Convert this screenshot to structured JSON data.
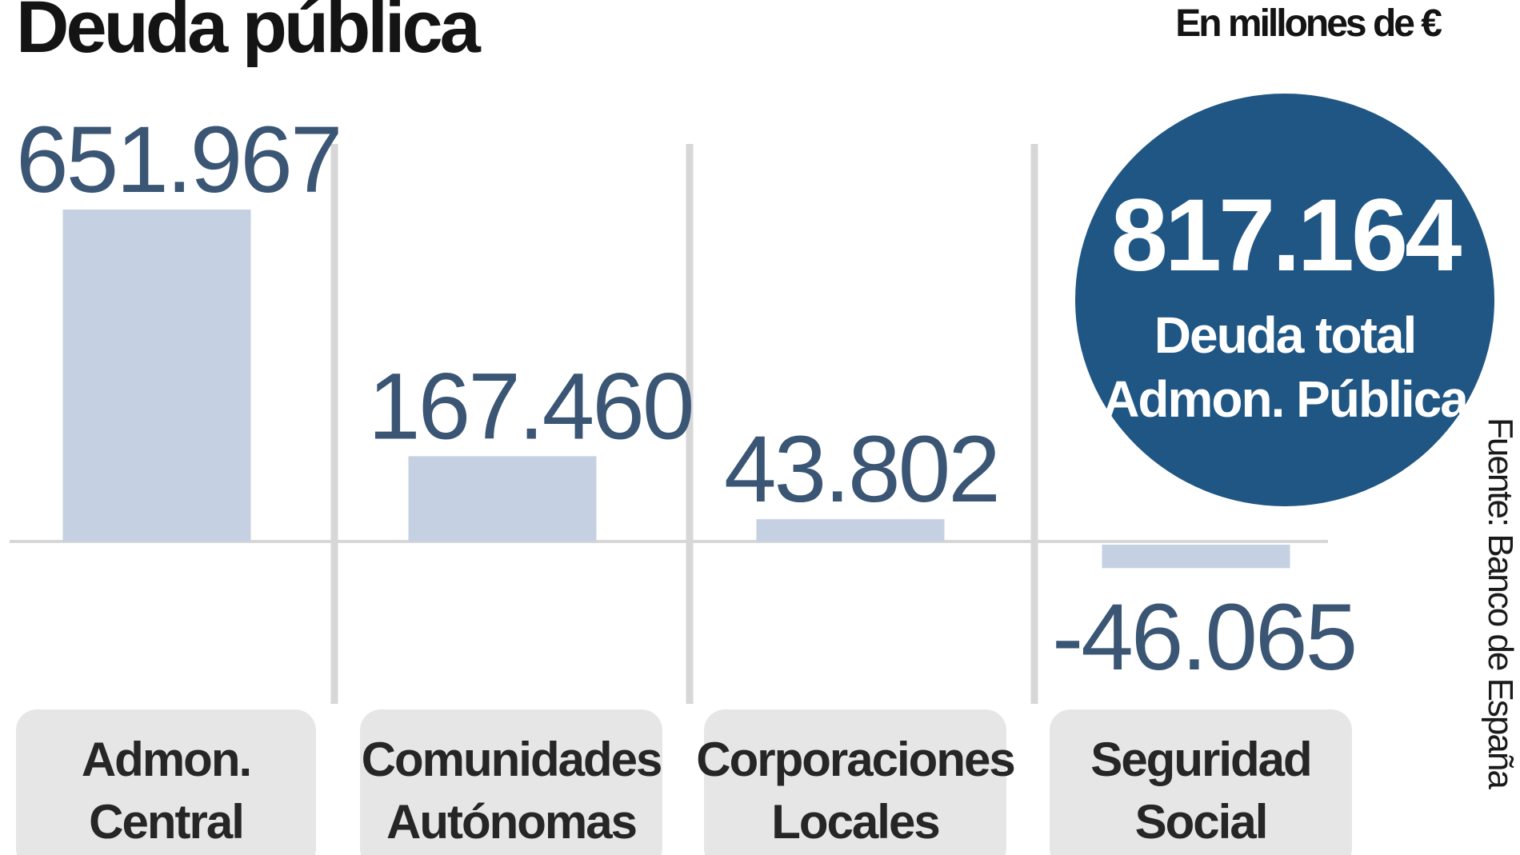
{
  "header": {
    "title": "Deuda pública",
    "unit_note": "En millones de €"
  },
  "total": {
    "value": "817.164",
    "caption": "Deuda total Admon. Pública"
  },
  "source": "Fuente: Banco de España",
  "colors": {
    "bar": "#c5d1e2",
    "value_text": "#3a5674",
    "circle": "#1f5684",
    "category_box": "#e6e6e6",
    "divider": "#d7d7d7"
  },
  "chart_data": {
    "type": "bar",
    "title": "Deuda pública",
    "unit": "En millones de €",
    "categories": [
      [
        "Admon.",
        "Central"
      ],
      [
        "Comunidades",
        "Autónomas"
      ],
      [
        "Corporaciones",
        "Locales"
      ],
      [
        "Seguridad",
        "Social"
      ]
    ],
    "values": [
      651967,
      167460,
      43802,
      -46065
    ],
    "value_labels": [
      "651.967",
      "167.460",
      "43.802",
      "-46.065"
    ],
    "total_label": "817.164",
    "grid": false,
    "legend": "none"
  }
}
